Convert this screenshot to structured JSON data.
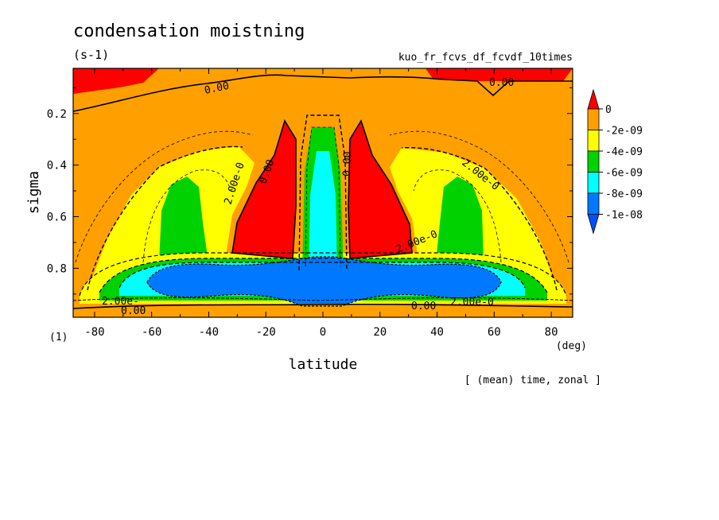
{
  "chart_data": {
    "type": "contour",
    "title": "condensation moistning",
    "units": "(s-1)",
    "experiment": "kuo_fr_fcvs_df_fcvdf_10times",
    "xlabel": "latitude",
    "xunit": "(deg)",
    "ylabel": "sigma",
    "yunit": "(1)",
    "footnote": "[ (mean) time, zonal ]",
    "xlim": [
      -87.5,
      87.5
    ],
    "ylim": [
      0.025,
      0.99
    ],
    "y_inverted": true,
    "xticks": [
      -80,
      -60,
      -40,
      -20,
      0,
      20,
      40,
      60,
      80
    ],
    "yticks": [
      0.2,
      0.4,
      0.6,
      0.8
    ],
    "xtick_labels": [
      "-80",
      "-60",
      "-40",
      "-20",
      "0",
      "20",
      "40",
      "60",
      "80"
    ],
    "ytick_labels": [
      "0.2",
      "0.4",
      "0.6",
      "0.8"
    ],
    "colorbar": {
      "labels": [
        "0",
        "-2e-09",
        "-4e-09",
        "-6e-09",
        "-8e-09",
        "-1e-08"
      ],
      "colors": [
        "#ff0000",
        "#ffa000",
        "#ffff00",
        "#00d200",
        "#00ffff",
        "#0078ff",
        "#0050ff"
      ]
    },
    "contour_labels": [
      {
        "text": "0.00",
        "lat": -32,
        "sigma": 0.1
      },
      {
        "text": "0.00",
        "lat": 60,
        "sigma": 0.09
      },
      {
        "text": "2.00e-0",
        "lat": -33,
        "sigma": 0.44
      },
      {
        "text": "0.00",
        "lat": -20,
        "sigma": 0.45
      },
      {
        "text": "0.00",
        "lat": 9,
        "sigma": 0.36
      },
      {
        "text": "2.00e-0",
        "lat": 64,
        "sigma": 0.38
      },
      {
        "text": "2.00e-0",
        "lat": 38,
        "sigma": 0.72
      },
      {
        "text": "2.00e-",
        "lat": -82,
        "sigma": 0.94
      },
      {
        "text": "0.00",
        "lat": -76,
        "sigma": 0.97
      },
      {
        "text": "0.00",
        "lat": 36,
        "sigma": 0.96
      },
      {
        "text": "2.00e-0",
        "lat": 63,
        "sigma": 0.94
      }
    ],
    "regions": [
      {
        "name": "top-left-positive",
        "value_band": ">0",
        "lat_range": [
          -87.5,
          -60
        ],
        "sigma_range": [
          0.025,
          0.11
        ]
      },
      {
        "name": "top-right-positive",
        "value_band": ">0",
        "lat_range": [
          40,
          87.5
        ],
        "sigma_range": [
          0.025,
          0.075
        ]
      },
      {
        "name": "left-red-column",
        "value_band": ">0",
        "lat_range": [
          -33,
          -10
        ],
        "sigma_range": [
          0.22,
          0.75
        ]
      },
      {
        "name": "right-red-column",
        "value_band": ">0",
        "lat_range": [
          10,
          33
        ],
        "sigma_range": [
          0.22,
          0.75
        ]
      },
      {
        "name": "left-green-cell",
        "value_band": "-6e-09 to -4e-09",
        "lat_range": [
          -55,
          -44
        ],
        "sigma_range": [
          0.45,
          0.8
        ]
      },
      {
        "name": "right-green-cell",
        "value_band": "-6e-09 to -4e-09",
        "lat_range": [
          44,
          55
        ],
        "sigma_range": [
          0.45,
          0.8
        ]
      },
      {
        "name": "equatorial-cyan-tongue",
        "value_band": "-8e-09 to -6e-09",
        "lat_range": [
          -6,
          6
        ],
        "sigma_range": [
          0.3,
          0.85
        ]
      },
      {
        "name": "low-level-blue-band",
        "value_band": "< -1e-08",
        "lat_range": [
          -63,
          63
        ],
        "sigma_range": [
          0.8,
          0.94
        ]
      }
    ]
  }
}
